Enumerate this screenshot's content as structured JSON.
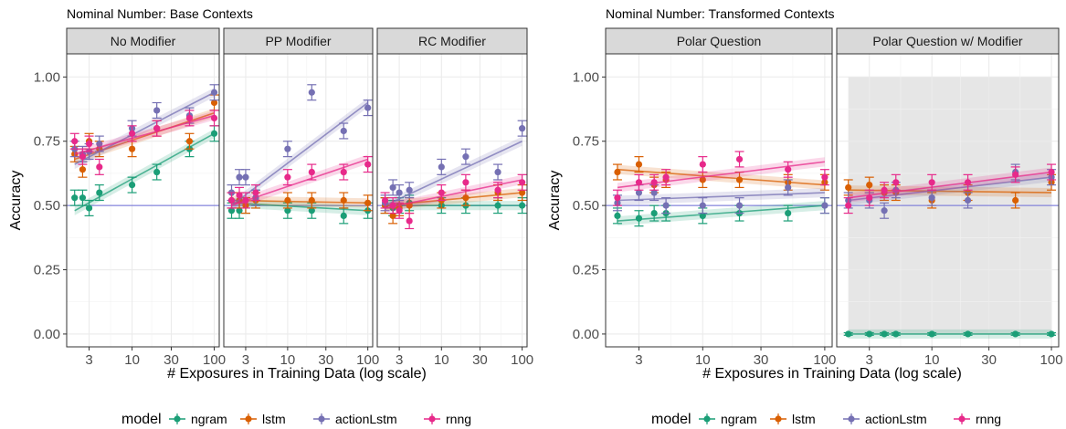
{
  "figure": {
    "legend": {
      "title": "model",
      "entries": [
        {
          "name": "ngram",
          "color": "#1b9e77"
        },
        {
          "name": "lstm",
          "color": "#d95f02"
        },
        {
          "name": "actionLstm",
          "color": "#7570b3"
        },
        {
          "name": "rnng",
          "color": "#e7298a"
        }
      ]
    }
  },
  "chart_data": [
    {
      "type": "scatter",
      "title": "Nominal Number: Base Contexts",
      "xlabel": "# Exposures in Training Data (log scale)",
      "ylabel": "Accuracy",
      "x_scale": "log",
      "xlim": [
        1.6,
        115
      ],
      "ylim": [
        -0.05,
        1.09
      ],
      "x_ticks": [
        3,
        10,
        30,
        100
      ],
      "y_ticks": [
        0.0,
        0.25,
        0.5,
        0.75,
        1.0
      ],
      "y_tick_labels": [
        "0.00",
        "0.25",
        "0.50",
        "0.75",
        "1.00"
      ],
      "reference_line": 0.5,
      "legend_position": "bottom",
      "panels": [
        {
          "label": "No Modifier",
          "series": [
            {
              "name": "ngram",
              "x": [
                2,
                2.5,
                3,
                4,
                10,
                20,
                50,
                100
              ],
              "y": [
                0.53,
                0.53,
                0.49,
                0.55,
                0.58,
                0.63,
                0.72,
                0.78
              ],
              "err": [
                0.03,
                0.03,
                0.03,
                0.03,
                0.03,
                0.03,
                0.03,
                0.03
              ],
              "fit": [
                0.48,
                0.78
              ]
            },
            {
              "name": "lstm",
              "x": [
                2,
                2.5,
                3,
                4,
                10,
                20,
                50,
                100
              ],
              "y": [
                0.7,
                0.64,
                0.75,
                0.72,
                0.72,
                0.8,
                0.75,
                0.9
              ],
              "err": [
                0.03,
                0.03,
                0.03,
                0.03,
                0.03,
                0.03,
                0.03,
                0.03
              ],
              "fit": [
                0.68,
                0.86
              ]
            },
            {
              "name": "actionLstm",
              "x": [
                2,
                2.5,
                3,
                4,
                10,
                20,
                50,
                100
              ],
              "y": [
                0.72,
                0.7,
                0.71,
                0.74,
                0.8,
                0.87,
                0.85,
                0.94
              ],
              "err": [
                0.03,
                0.03,
                0.03,
                0.03,
                0.03,
                0.03,
                0.03,
                0.03
              ],
              "fit": [
                0.66,
                0.94
              ]
            },
            {
              "name": "rnng",
              "x": [
                2,
                2.5,
                3,
                4,
                10,
                20,
                50,
                100
              ],
              "y": [
                0.75,
                0.69,
                0.74,
                0.65,
                0.78,
                0.8,
                0.84,
                0.84
              ],
              "err": [
                0.03,
                0.03,
                0.03,
                0.03,
                0.03,
                0.03,
                0.03,
                0.03
              ],
              "fit": [
                0.7,
                0.85
              ]
            }
          ]
        },
        {
          "label": "PP Modifier",
          "series": [
            {
              "name": "ngram",
              "x": [
                2,
                2.5,
                3,
                4,
                10,
                20,
                50,
                100
              ],
              "y": [
                0.48,
                0.48,
                0.5,
                0.53,
                0.48,
                0.48,
                0.46,
                0.48
              ],
              "err": [
                0.03,
                0.03,
                0.03,
                0.03,
                0.03,
                0.03,
                0.03,
                0.03
              ],
              "fit": [
                0.51,
                0.48
              ]
            },
            {
              "name": "lstm",
              "x": [
                2,
                2.5,
                3,
                4,
                10,
                20,
                50,
                100
              ],
              "y": [
                0.52,
                0.52,
                0.5,
                0.52,
                0.52,
                0.52,
                0.52,
                0.51
              ],
              "err": [
                0.03,
                0.03,
                0.03,
                0.03,
                0.03,
                0.03,
                0.03,
                0.03
              ],
              "fit": [
                0.52,
                0.51
              ]
            },
            {
              "name": "actionLstm",
              "x": [
                2,
                2.5,
                3,
                4,
                10,
                20,
                50,
                100
              ],
              "y": [
                0.55,
                0.61,
                0.61,
                0.53,
                0.72,
                0.94,
                0.79,
                0.88
              ],
              "err": [
                0.03,
                0.03,
                0.03,
                0.03,
                0.03,
                0.03,
                0.03,
                0.03
              ],
              "fit": [
                0.5,
                0.9
              ]
            },
            {
              "name": "rnng",
              "x": [
                2,
                2.5,
                3,
                4,
                10,
                20,
                50,
                100
              ],
              "y": [
                0.52,
                0.54,
                0.52,
                0.55,
                0.61,
                0.63,
                0.63,
                0.66
              ],
              "err": [
                0.03,
                0.03,
                0.03,
                0.03,
                0.03,
                0.03,
                0.03,
                0.03
              ],
              "fit": [
                0.5,
                0.68
              ]
            }
          ]
        },
        {
          "label": "RC Modifier",
          "series": [
            {
              "name": "ngram",
              "x": [
                2,
                2.5,
                3,
                4,
                10,
                20,
                50,
                100
              ],
              "y": [
                0.5,
                0.49,
                0.5,
                0.51,
                0.5,
                0.5,
                0.5,
                0.5
              ],
              "err": [
                0.03,
                0.03,
                0.03,
                0.03,
                0.03,
                0.03,
                0.03,
                0.03
              ],
              "fit": [
                0.5,
                0.5
              ]
            },
            {
              "name": "lstm",
              "x": [
                2,
                2.5,
                3,
                4,
                10,
                20,
                50,
                100
              ],
              "y": [
                0.5,
                0.46,
                0.49,
                0.5,
                0.52,
                0.53,
                0.55,
                0.55
              ],
              "err": [
                0.03,
                0.03,
                0.03,
                0.03,
                0.03,
                0.03,
                0.03,
                0.03
              ],
              "fit": [
                0.5,
                0.55
              ]
            },
            {
              "name": "actionLstm",
              "x": [
                2,
                2.5,
                3,
                4,
                10,
                20,
                50,
                100
              ],
              "y": [
                0.51,
                0.57,
                0.55,
                0.56,
                0.65,
                0.69,
                0.63,
                0.8
              ],
              "err": [
                0.03,
                0.03,
                0.03,
                0.03,
                0.03,
                0.03,
                0.03,
                0.03
              ],
              "fit": [
                0.5,
                0.75
              ]
            },
            {
              "name": "rnng",
              "x": [
                2,
                2.5,
                3,
                4,
                10,
                20,
                50,
                100
              ],
              "y": [
                0.52,
                0.5,
                0.48,
                0.44,
                0.55,
                0.59,
                0.56,
                0.59
              ],
              "err": [
                0.03,
                0.03,
                0.03,
                0.03,
                0.03,
                0.03,
                0.03,
                0.03
              ],
              "fit": [
                0.49,
                0.6
              ]
            }
          ]
        }
      ]
    },
    {
      "type": "scatter",
      "title": "Nominal Number: Transformed Contexts",
      "xlabel": "# Exposures in Training Data (log scale)",
      "ylabel": "Accuracy",
      "x_scale": "log",
      "xlim": [
        1.6,
        115
      ],
      "ylim": [
        -0.05,
        1.09
      ],
      "x_ticks": [
        3,
        10,
        30,
        100
      ],
      "y_ticks": [
        0.0,
        0.25,
        0.5,
        0.75,
        1.0
      ],
      "y_tick_labels": [
        "0.00",
        "0.25",
        "0.50",
        "0.75",
        "1.00"
      ],
      "reference_line": 0.5,
      "legend_position": "bottom",
      "panels": [
        {
          "label": "Polar Question",
          "series": [
            {
              "name": "ngram",
              "x": [
                2,
                3,
                4,
                5,
                10,
                20,
                50,
                100
              ],
              "y": [
                0.46,
                0.45,
                0.47,
                0.47,
                0.46,
                0.47,
                0.47,
                0.5
              ],
              "err": [
                0.03,
                0.03,
                0.03,
                0.03,
                0.03,
                0.03,
                0.03,
                0.03
              ],
              "fit": [
                0.44,
                0.5
              ]
            },
            {
              "name": "lstm",
              "x": [
                2,
                3,
                4,
                5,
                10,
                20,
                50,
                100
              ],
              "y": [
                0.63,
                0.66,
                0.58,
                0.6,
                0.6,
                0.6,
                0.59,
                0.59
              ],
              "err": [
                0.03,
                0.03,
                0.03,
                0.03,
                0.03,
                0.03,
                0.03,
                0.03
              ],
              "fit": [
                0.64,
                0.58
              ]
            },
            {
              "name": "actionLstm",
              "x": [
                2,
                3,
                4,
                5,
                10,
                20,
                50,
                100
              ],
              "y": [
                0.51,
                0.55,
                0.55,
                0.5,
                0.5,
                0.5,
                0.57,
                0.5
              ],
              "err": [
                0.03,
                0.03,
                0.03,
                0.03,
                0.03,
                0.03,
                0.03,
                0.03
              ],
              "fit": [
                0.52,
                0.55
              ]
            },
            {
              "name": "rnng",
              "x": [
                2,
                3,
                4,
                5,
                10,
                20,
                50,
                100
              ],
              "y": [
                0.53,
                0.59,
                0.59,
                0.61,
                0.66,
                0.68,
                0.64,
                0.61
              ],
              "err": [
                0.03,
                0.03,
                0.03,
                0.03,
                0.03,
                0.03,
                0.03,
                0.03
              ],
              "fit": [
                0.57,
                0.67
              ]
            }
          ]
        },
        {
          "label": "Polar Question w/ Modifier",
          "shaded": true,
          "series": [
            {
              "name": "ngram",
              "x": [
                2,
                3,
                4,
                5,
                10,
                20,
                50,
                100
              ],
              "y": [
                0.0,
                0.0,
                0.0,
                0.0,
                0.0,
                0.0,
                0.0,
                0.0
              ],
              "err": [
                0.005,
                0.005,
                0.005,
                0.005,
                0.005,
                0.005,
                0.005,
                0.005
              ],
              "fit": [
                0.0,
                0.0
              ]
            },
            {
              "name": "lstm",
              "x": [
                2,
                3,
                4,
                5,
                10,
                20,
                50,
                100
              ],
              "y": [
                0.57,
                0.58,
                0.55,
                0.55,
                0.52,
                0.55,
                0.52,
                0.59
              ],
              "err": [
                0.03,
                0.03,
                0.03,
                0.03,
                0.03,
                0.03,
                0.03,
                0.03
              ],
              "fit": [
                0.56,
                0.55
              ]
            },
            {
              "name": "actionLstm",
              "x": [
                2,
                3,
                4,
                5,
                10,
                20,
                50,
                100
              ],
              "y": [
                0.52,
                0.52,
                0.48,
                0.56,
                0.53,
                0.52,
                0.63,
                0.61
              ],
              "err": [
                0.03,
                0.03,
                0.03,
                0.03,
                0.03,
                0.03,
                0.03,
                0.03
              ],
              "fit": [
                0.52,
                0.61
              ]
            },
            {
              "name": "rnng",
              "x": [
                2,
                3,
                4,
                5,
                10,
                20,
                50,
                100
              ],
              "y": [
                0.5,
                0.53,
                0.56,
                0.59,
                0.59,
                0.59,
                0.62,
                0.63
              ],
              "err": [
                0.03,
                0.03,
                0.03,
                0.03,
                0.03,
                0.03,
                0.03,
                0.03
              ],
              "fit": [
                0.53,
                0.63
              ]
            }
          ]
        }
      ]
    }
  ]
}
